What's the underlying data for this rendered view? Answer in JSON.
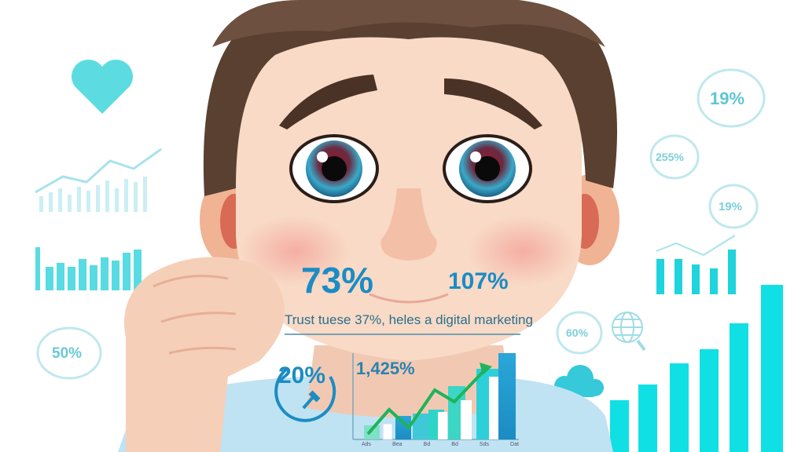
{
  "colors": {
    "accent_blue": "#1b8cc4",
    "cyan": "#19d6e0",
    "green_trend": "#1fb35a",
    "hair": "#5a4030",
    "skin": "#f6d3bd",
    "shirt": "#bfe3f2"
  },
  "overlay": {
    "stat_left": "73%",
    "stat_right": "107%",
    "caption": "Trust tuese 37%, heles a digital marketing",
    "clock_stat": "20%",
    "chart_stat": "1,425%",
    "chart_tick_labels": [
      "Ads",
      "Bea",
      "Bd",
      "Bd",
      "Sds",
      "Dat"
    ]
  },
  "background": {
    "bubble_top": "19%",
    "bubble_mid": "255%",
    "bubble_lower": "19%",
    "bubble_right_small": "60%",
    "bubble_left": "50%"
  },
  "icons": [
    "heart-icon",
    "globe-search-icon",
    "cloud-icon",
    "clock-icon"
  ]
}
